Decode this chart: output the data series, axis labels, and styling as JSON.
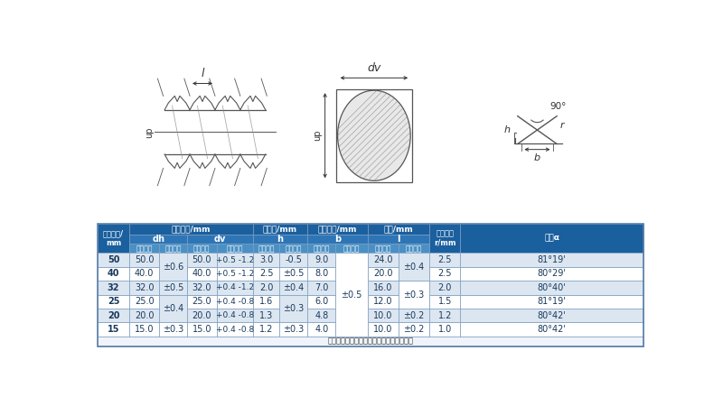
{
  "bg_color": "#ffffff",
  "header_blue": "#1a5f9e",
  "header_mid": "#2e75b6",
  "header_sub": "#4a90c4",
  "cell_white": "#ffffff",
  "cell_alt": "#dce6f1",
  "text_dark": "#1a3a5c",
  "text_white": "#ffffff",
  "border_color": "#7a9cc0",
  "note": "注：蜗纹底宽允许偏差属于轧制设计参数。",
  "rows": [
    [
      "15",
      "15.0",
      "±0.3",
      "15.0",
      "+0.4 -0.8",
      "1.2",
      "±0.3",
      "4.0",
      "10.0",
      "±0.2",
      "1.0",
      "80°42'"
    ],
    [
      "20",
      "20.0",
      "±0.4",
      "20.0",
      "+0.4 -0.8",
      "1.3",
      "±0.3",
      "4.8",
      "10.0",
      "±0.2",
      "1.2",
      "80°42'"
    ],
    [
      "25",
      "25.0",
      "±0.4",
      "25.0",
      "+0.4 -0.8",
      "1.6",
      "±0.3",
      "6.0",
      "12.0",
      "±0.3",
      "1.5",
      "81°19'"
    ],
    [
      "32",
      "32.0",
      "±0.5",
      "32.0",
      "+0.4 -1.2",
      "2.0",
      "±0.4",
      "7.0",
      "16.0",
      "±0.3",
      "2.0",
      "80°40'"
    ],
    [
      "40",
      "40.0",
      "±0.6",
      "40.0",
      "+0.5 -1.2",
      "2.5",
      "±0.5",
      "8.0",
      "20.0",
      "±0.4",
      "2.5",
      "80°29'"
    ],
    [
      "50",
      "50.0",
      "±0.6",
      "50.0",
      "+0.5 -1.2",
      "3.0",
      "-0.5",
      "9.0",
      "24.0",
      "±0.4",
      "2.5",
      "81°19'"
    ]
  ]
}
